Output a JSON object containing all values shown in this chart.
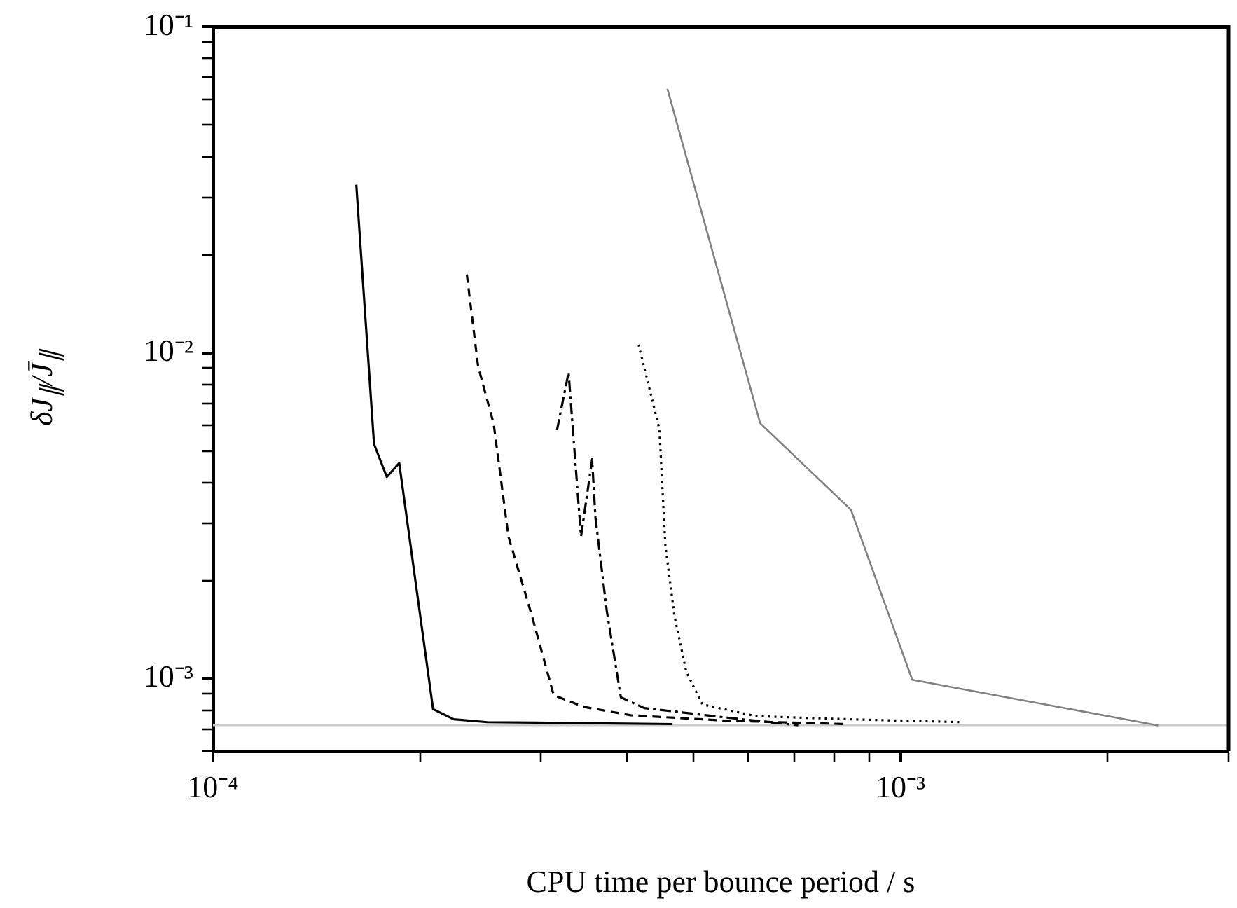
{
  "chart_data": {
    "type": "line",
    "xlabel": "CPU time per bounce period / s",
    "ylabel": "δJ$_{∥}$/J̄$_{∥}$",
    "log": "xy",
    "xlim": [
      0.0001,
      0.003
    ],
    "ylim": [
      0.0006,
      0.1
    ],
    "xticks": [
      {
        "value": 0.0001,
        "label": "10⁻⁴"
      },
      {
        "value": 0.0002,
        "label": null
      },
      {
        "value": 0.0003,
        "label": null
      },
      {
        "value": 0.0004,
        "label": null
      },
      {
        "value": 0.0005,
        "label": null
      },
      {
        "value": 0.0006,
        "label": null
      },
      {
        "value": 0.0007,
        "label": null
      },
      {
        "value": 0.0008,
        "label": null
      },
      {
        "value": 0.0009,
        "label": null
      },
      {
        "value": 0.001,
        "label": "10⁻³"
      },
      {
        "value": 0.002,
        "label": null
      },
      {
        "value": 0.003,
        "label": null
      }
    ],
    "yticks": [
      {
        "value": 0.0006,
        "label": null
      },
      {
        "value": 0.0007,
        "label": null
      },
      {
        "value": 0.0008,
        "label": null
      },
      {
        "value": 0.0009,
        "label": null
      },
      {
        "value": 0.001,
        "label": "10⁻³"
      },
      {
        "value": 0.002,
        "label": null
      },
      {
        "value": 0.003,
        "label": null
      },
      {
        "value": 0.004,
        "label": null
      },
      {
        "value": 0.005,
        "label": null
      },
      {
        "value": 0.006,
        "label": null
      },
      {
        "value": 0.007,
        "label": null
      },
      {
        "value": 0.008,
        "label": null
      },
      {
        "value": 0.009,
        "label": null
      },
      {
        "value": 0.01,
        "label": "10⁻²"
      },
      {
        "value": 0.02,
        "label": null
      },
      {
        "value": 0.03,
        "label": null
      },
      {
        "value": 0.04,
        "label": null
      },
      {
        "value": 0.05,
        "label": null
      },
      {
        "value": 0.06,
        "label": null
      },
      {
        "value": 0.07,
        "label": null
      },
      {
        "value": 0.08,
        "label": null
      },
      {
        "value": 0.09,
        "label": null
      },
      {
        "value": 0.1,
        "label": "10⁻¹"
      }
    ],
    "ref_lines": [
      {
        "axis": "y",
        "value": 0.00072,
        "color": "#cccccc"
      }
    ],
    "series": [
      {
        "color": "#000000",
        "line_style": "solid",
        "x": [
          0.0001616,
          0.0001715,
          0.000179,
          0.0001866,
          0.000209,
          0.000224,
          0.0002506,
          0.000466
        ],
        "values": [
          0.0328,
          0.00525,
          0.00416,
          0.00459,
          0.000807,
          0.000751,
          0.000736,
          0.000726
        ]
      },
      {
        "color": "#000000",
        "line_style": "dashed",
        "x": [
          0.000234,
          0.000243,
          0.000256,
          0.000269,
          0.000291,
          0.000313,
          0.000346,
          0.000405,
          0.000562,
          0.000837
        ],
        "values": [
          0.0174,
          0.00909,
          0.00606,
          0.00273,
          0.00156,
          0.000891,
          0.00082,
          0.000773,
          0.000743,
          0.000726
        ]
      },
      {
        "color": "#000000",
        "line_style": "dashdot",
        "x": [
          0.0003165,
          0.000329,
          0.000343,
          0.000356,
          0.00036,
          0.000374,
          0.000392,
          0.000424,
          0.000562,
          0.00071
        ],
        "values": [
          0.00579,
          0.00871,
          0.00273,
          0.00471,
          0.00312,
          0.00161,
          0.000877,
          0.000813,
          0.000759,
          0.00072
        ]
      },
      {
        "color": "#000000",
        "line_style": "dotted",
        "x": [
          0.000416,
          0.000446,
          0.000455,
          0.000469,
          0.000488,
          0.000515,
          0.000616,
          0.000843,
          0.00122
        ],
        "values": [
          0.0106,
          0.00582,
          0.00256,
          0.00156,
          0.00105,
          0.000834,
          0.000768,
          0.000751,
          0.000736
        ]
      },
      {
        "color": "#808080",
        "line_style": "solid",
        "x": [
          0.000458,
          0.000625,
          0.000847,
          0.00104,
          0.00237
        ],
        "values": [
          0.0646,
          0.00608,
          0.0033,
          0.000993,
          0.000719
        ]
      }
    ]
  }
}
